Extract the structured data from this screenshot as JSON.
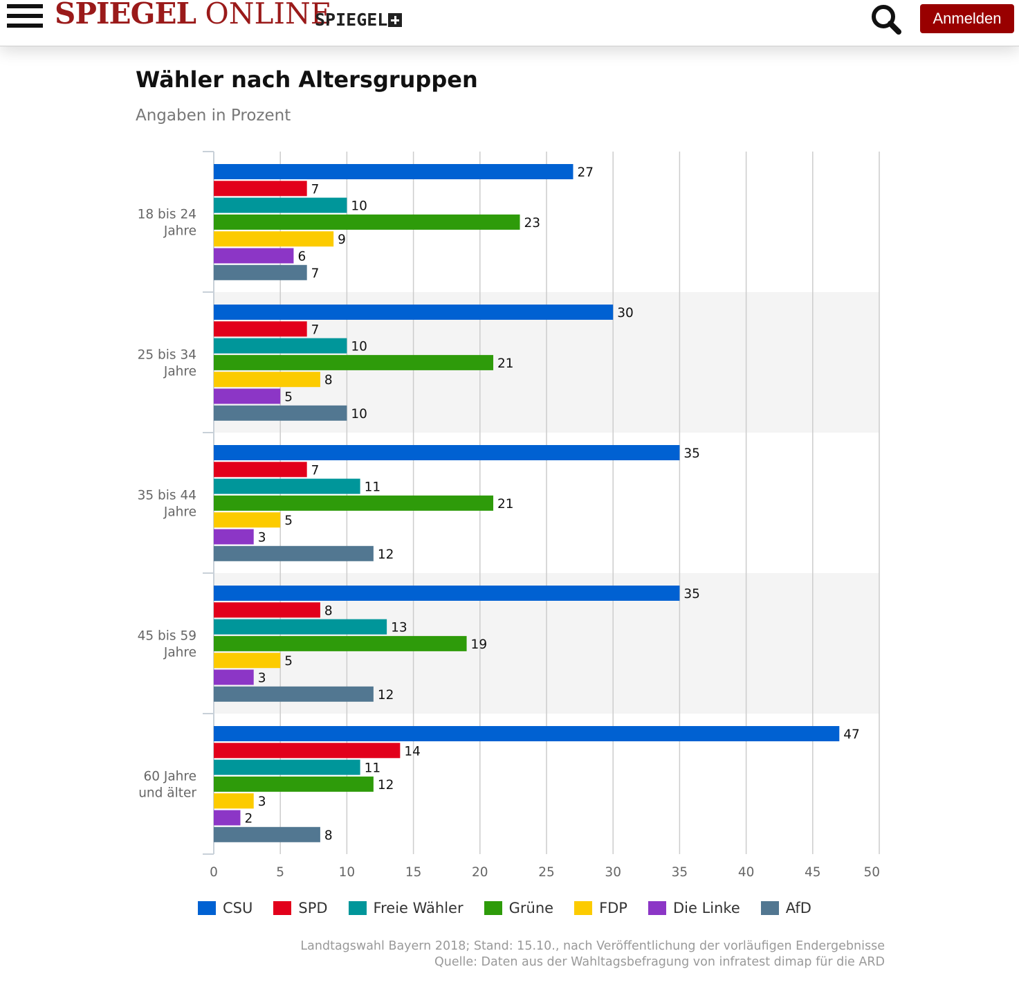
{
  "header": {
    "logo_bold": "SPIEGEL",
    "logo_regular": "ONLINE",
    "plus_label": "SPIEGEL",
    "login_label": "Anmelden"
  },
  "icons": {
    "menu": "hamburger-icon",
    "search": "search-icon",
    "plus": "plus-icon"
  },
  "footnote": {
    "line1": "Landtagswahl Bayern 2018; Stand: 15.10., nach Veröffentlichung der vorläufigen Endergebnisse",
    "line2": "Quelle: Daten aus der Wahltagsbefragung von infratest dimap für die ARD"
  },
  "chart_data": {
    "type": "bar",
    "orientation": "horizontal",
    "title": "Wähler nach Altersgruppen",
    "subtitle": "Angaben in Prozent",
    "xlim": [
      0,
      50
    ],
    "xticks": [
      0,
      5,
      10,
      15,
      20,
      25,
      30,
      35,
      40,
      45,
      50
    ],
    "grid": true,
    "legend_position": "bottom",
    "categories": [
      [
        "18 bis 24",
        "Jahre"
      ],
      [
        "25 bis 34",
        "Jahre"
      ],
      [
        "35 bis 44",
        "Jahre"
      ],
      [
        "45 bis 59",
        "Jahre"
      ],
      [
        "60 Jahre",
        "und älter"
      ]
    ],
    "series": [
      {
        "name": "CSU",
        "color": "#0061d2",
        "values": [
          27,
          30,
          35,
          35,
          47
        ]
      },
      {
        "name": "SPD",
        "color": "#e2001b",
        "values": [
          7,
          7,
          7,
          8,
          14
        ]
      },
      {
        "name": "Freie Wähler",
        "color": "#00969a",
        "values": [
          10,
          10,
          11,
          13,
          11
        ]
      },
      {
        "name": "Grüne",
        "color": "#2e9b0a",
        "values": [
          23,
          21,
          21,
          19,
          12
        ]
      },
      {
        "name": "FDP",
        "color": "#fccb00",
        "values": [
          9,
          8,
          5,
          5,
          3
        ]
      },
      {
        "name": "Die Linke",
        "color": "#8c36c6",
        "values": [
          6,
          5,
          3,
          3,
          2
        ]
      },
      {
        "name": "AfD",
        "color": "#527791",
        "values": [
          7,
          10,
          12,
          12,
          8
        ]
      }
    ]
  }
}
